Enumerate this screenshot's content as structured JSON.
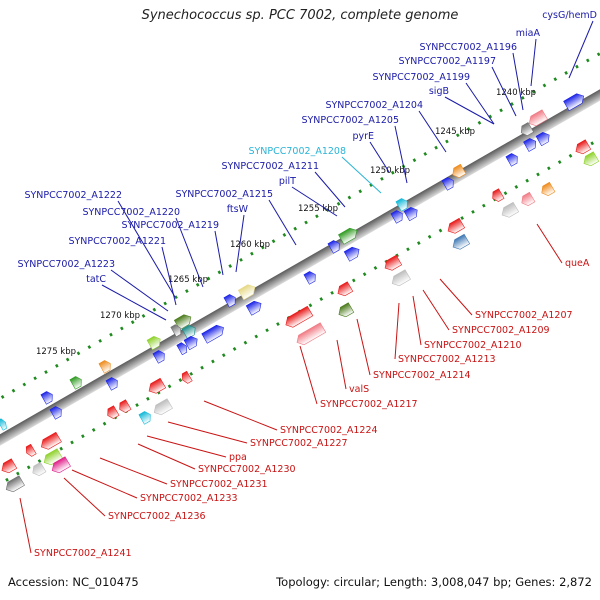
{
  "title": "Synechococcus sp. PCC 7002, complete genome",
  "footer": {
    "accession": "Accession: NC_010475",
    "summary": "Topology: circular; Length: 3,008,047 bp; Genes: 2,872"
  },
  "colors": {
    "backbone": "#808080",
    "tick_dots": "#1f8a1f",
    "forward_gene": "#1a22e6",
    "reverse_gene": "#e61a1a",
    "forward_label": "#1a1aa8",
    "reverse_label": "#c81414",
    "highlight_label": "#2ab4d6"
  },
  "ticks": [
    "1240 kbp",
    "1245 kbp",
    "1250 kbp",
    "1255 kbp",
    "1260 kbp",
    "1265 kbp",
    "1270 kbp",
    "1275 kbp"
  ],
  "forward_labels": [
    "cysG/hemD",
    "miaA",
    "SYNPCC7002_A1196",
    "SYNPCC7002_A1197",
    "SYNPCC7002_A1199",
    "sigB",
    "SYNPCC7002_A1204",
    "SYNPCC7002_A1205",
    "pyrE",
    "SYNPCC7002_A1208",
    "SYNPCC7002_A1211",
    "pilT",
    "SYNPCC7002_A1215",
    "ftsW",
    "SYNPCC7002_A1222",
    "SYNPCC7002_A1220",
    "SYNPCC7002_A1219",
    "SYNPCC7002_A1221",
    "SYNPCC7002_A1223",
    "tatC"
  ],
  "reverse_labels": [
    "queA",
    "SYNPCC7002_A1207",
    "SYNPCC7002_A1209",
    "SYNPCC7002_A1210",
    "SYNPCC7002_A1213",
    "SYNPCC7002_A1214",
    "valS",
    "SYNPCC7002_A1217",
    "SYNPCC7002_A1224",
    "SYNPCC7002_A1227",
    "ppa",
    "SYNPCC7002_A1230",
    "SYNPCC7002_A1231",
    "SYNPCC7002_A1233",
    "SYNPCC7002_A1236",
    "SYNPCC7002_A1241"
  ]
}
